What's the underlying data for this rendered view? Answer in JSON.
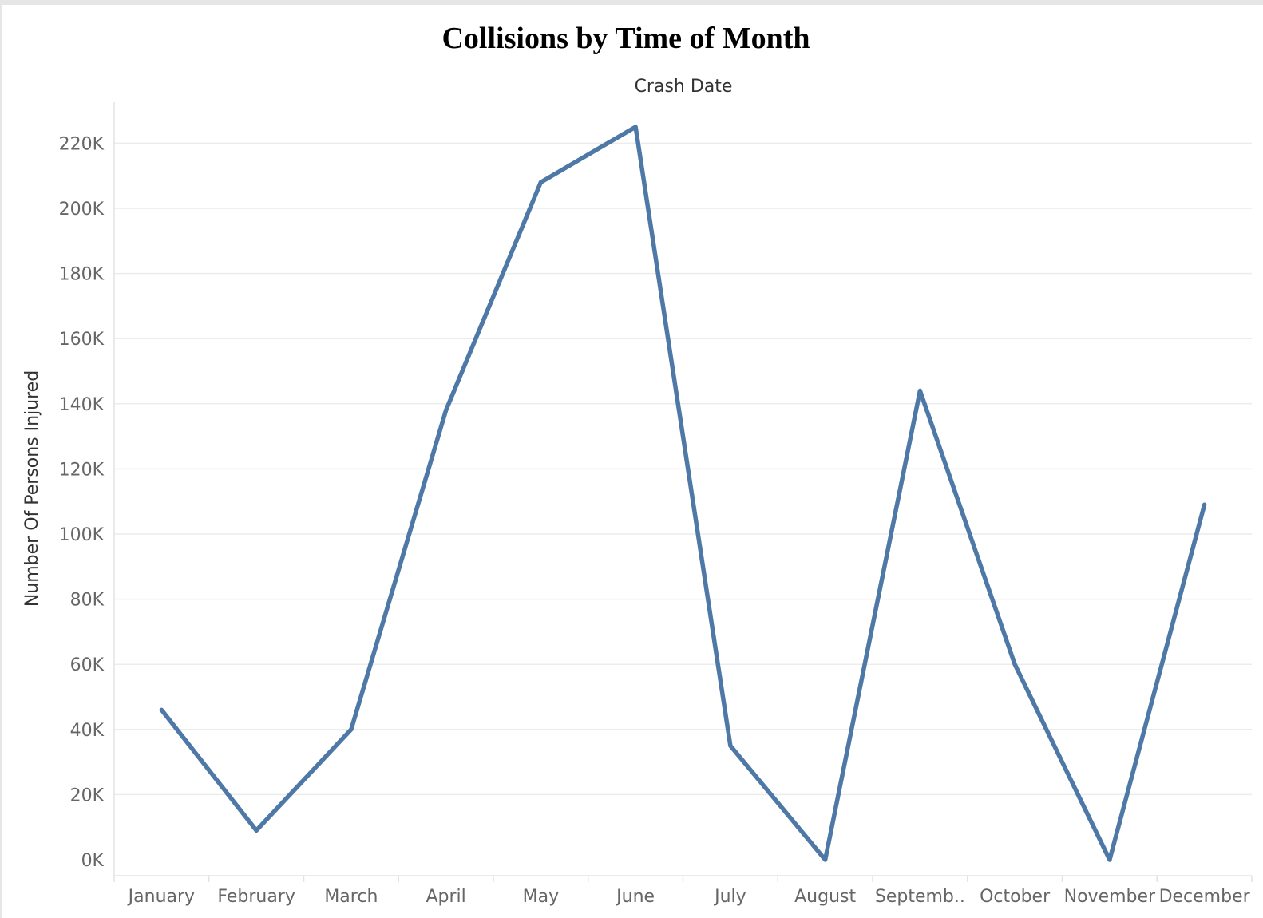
{
  "chart_data": {
    "type": "line",
    "title": "Collisions by Time of Month",
    "x_header": "Crash Date",
    "xlabel": "",
    "ylabel": "Number Of Persons Injured",
    "categories": [
      "January",
      "February",
      "March",
      "April",
      "May",
      "June",
      "July",
      "August",
      "Septemb..",
      "October",
      "November",
      "December"
    ],
    "series": [
      {
        "values": [
          46000,
          9000,
          40000,
          138000,
          208000,
          225000,
          35000,
          0,
          144000,
          60000,
          0,
          109000
        ]
      }
    ],
    "ylim": [
      0,
      235000
    ],
    "yticks": [
      0,
      20000,
      40000,
      60000,
      80000,
      100000,
      120000,
      140000,
      160000,
      180000,
      200000,
      220000
    ],
    "ytick_labels": [
      "0K",
      "20K",
      "40K",
      "60K",
      "80K",
      "100K",
      "120K",
      "140K",
      "160K",
      "180K",
      "200K",
      "220K"
    ],
    "grid": true,
    "legend": "none",
    "line_color": "#4e79a7"
  }
}
